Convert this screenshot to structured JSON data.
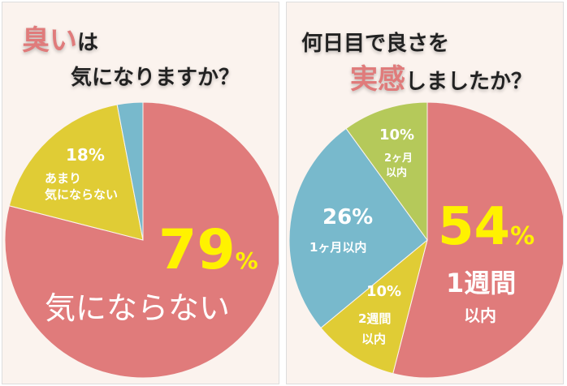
{
  "colors": {
    "pink": "#e07b7b",
    "yellow": "#e0cc35",
    "blue": "#78b9cc",
    "green": "#b5c95a"
  },
  "chart_data": [
    {
      "type": "pie",
      "title_parts": [
        "臭い",
        "は",
        "気になりますか？"
      ],
      "slices": [
        {
          "label": "気にならない",
          "value": 79,
          "color": "#e07b7b",
          "value_text": "79",
          "pct": "%"
        },
        {
          "label": "あまり気にならない",
          "label_lines": [
            "あまり",
            "気にならない"
          ],
          "value": 18,
          "color": "#e0cc35",
          "value_text": "18%"
        },
        {
          "label": "",
          "value": 3,
          "color": "#78b9cc"
        }
      ]
    },
    {
      "type": "pie",
      "title_parts": [
        "何日目で良さを",
        "実感",
        "しましたか？"
      ],
      "slices": [
        {
          "label": "1週間以内",
          "label_lines": [
            "1週間",
            "以内"
          ],
          "value": 54,
          "color": "#e07b7b",
          "value_text": "54",
          "pct": "%"
        },
        {
          "label": "2週間以内",
          "label_lines": [
            "2週間",
            "以内"
          ],
          "value": 10,
          "color": "#e0cc35",
          "value_text": "10%"
        },
        {
          "label": "1ヶ月以内",
          "value": 26,
          "color": "#78b9cc",
          "value_text": "26%"
        },
        {
          "label": "2ヶ月以内",
          "label_lines": [
            "2ヶ月",
            "以内"
          ],
          "value": 10,
          "color": "#b5c95a",
          "value_text": "10%"
        }
      ]
    }
  ]
}
